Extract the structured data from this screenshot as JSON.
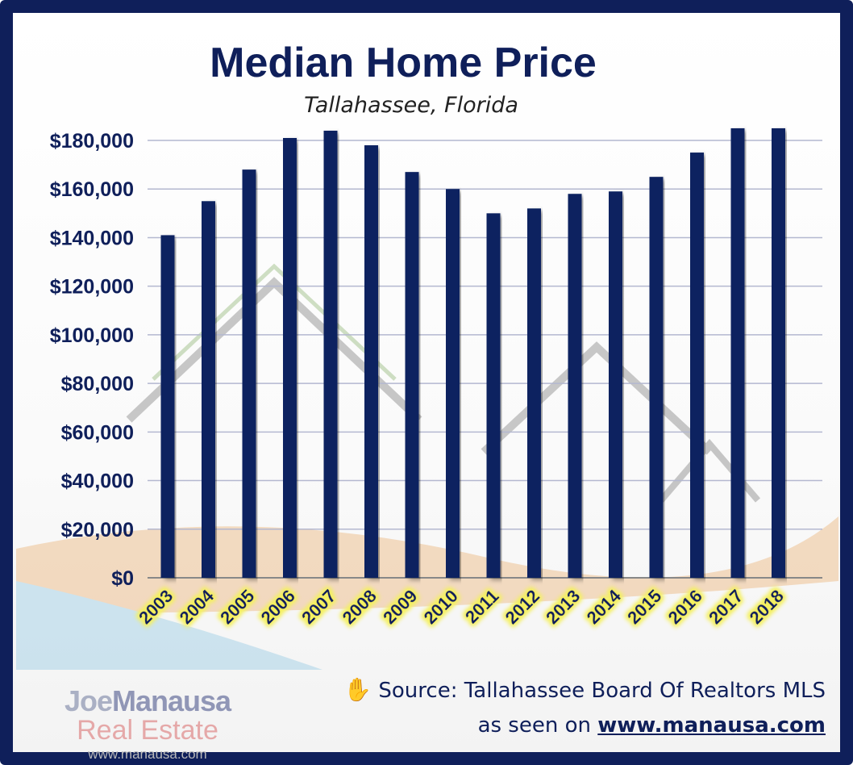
{
  "chart_data": {
    "type": "bar",
    "title": "Median Home Price",
    "subtitle": "Tallahassee, Florida",
    "categories": [
      "2003",
      "2004",
      "2005",
      "2006",
      "2007",
      "2008",
      "2009",
      "2010",
      "2011",
      "2012",
      "2013",
      "2014",
      "2015",
      "2016",
      "2017",
      "2018"
    ],
    "values": [
      141000,
      155000,
      168000,
      181000,
      184000,
      178000,
      167000,
      160000,
      150000,
      152000,
      158000,
      159000,
      165000,
      175000,
      185000,
      185000
    ],
    "ylim": [
      0,
      180000
    ],
    "yticks": [
      "$0",
      "$20,000",
      "$40,000",
      "$60,000",
      "$80,000",
      "$100,000",
      "$120,000",
      "$140,000",
      "$160,000",
      "$180,000"
    ],
    "grid": true,
    "bar_color": "#0b2260",
    "label_glow_color": "#f4f060"
  },
  "footer": {
    "source": "Source: Tallahassee Board Of Realtors MLS",
    "seen_prefix": "as seen on",
    "seen_link": "www.manausa.com",
    "hand_icon": "hand-icon"
  },
  "logo": {
    "joe": "Joe",
    "manausa": "Manausa",
    "real_estate": "Real Estate",
    "url": "www.manausa.com"
  }
}
